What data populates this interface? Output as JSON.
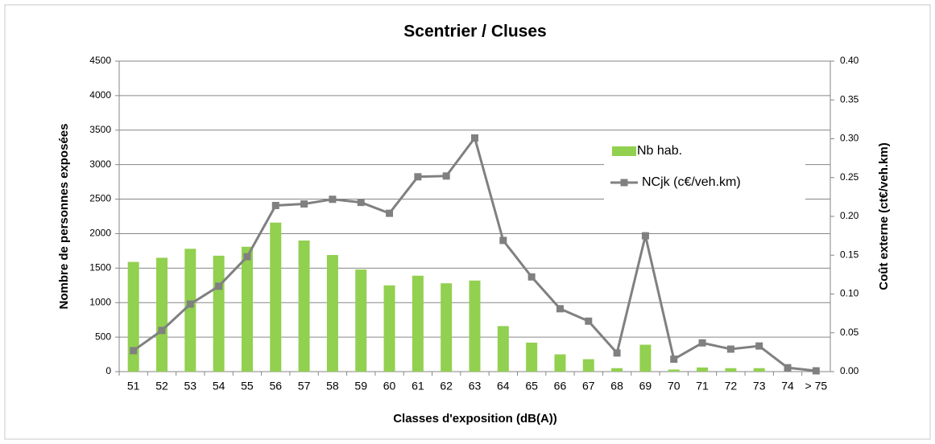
{
  "chart_data": {
    "type": "bar_line",
    "title": "Scentrier / Cluses",
    "x_label": "Classes d'exposition (dB(A))",
    "y_label": "Nombre de personnes exposées",
    "y2_label": "Coût externe (ct€/veh.km)",
    "categories": [
      "51",
      "52",
      "53",
      "54",
      "55",
      "56",
      "57",
      "58",
      "59",
      "60",
      "61",
      "62",
      "63",
      "64",
      "65",
      "66",
      "67",
      "68",
      "69",
      "70",
      "71",
      "72",
      "73",
      "74",
      "> 75"
    ],
    "series": [
      {
        "name": "Nb hab.",
        "type": "bar",
        "color": "#92d050",
        "values": [
          1590,
          1650,
          1780,
          1680,
          1810,
          2160,
          1900,
          1690,
          1480,
          1250,
          1390,
          1280,
          1320,
          660,
          420,
          250,
          180,
          50,
          390,
          30,
          60,
          50,
          50,
          0,
          0
        ]
      },
      {
        "name": "NCjk (c€/veh.km)",
        "type": "line",
        "axis": "y2",
        "color": "#808080",
        "values": [
          0.027,
          0.053,
          0.087,
          0.11,
          0.148,
          0.214,
          0.216,
          0.222,
          0.218,
          0.204,
          0.251,
          0.252,
          0.301,
          0.169,
          0.122,
          0.081,
          0.065,
          0.024,
          0.175,
          0.016,
          0.037,
          0.029,
          0.033,
          0.005,
          0.001
        ]
      }
    ],
    "ylim": [
      0,
      4500
    ],
    "yticks": [
      0,
      500,
      1000,
      1500,
      2000,
      2500,
      3000,
      3500,
      4000,
      4500
    ],
    "y2lim": [
      0,
      0.4
    ],
    "y2ticks": [
      {
        "value": 0,
        "label": "0.00"
      },
      0.05,
      {
        "value": 0.1,
        "label": "0.10"
      },
      0.15,
      {
        "value": 0.2,
        "label": "0.20"
      },
      0.25,
      {
        "value": 0.3,
        "label": "0.30"
      },
      0.35,
      {
        "value": 0.4,
        "label": "0.40"
      }
    ],
    "grid": true,
    "legend": "right"
  }
}
